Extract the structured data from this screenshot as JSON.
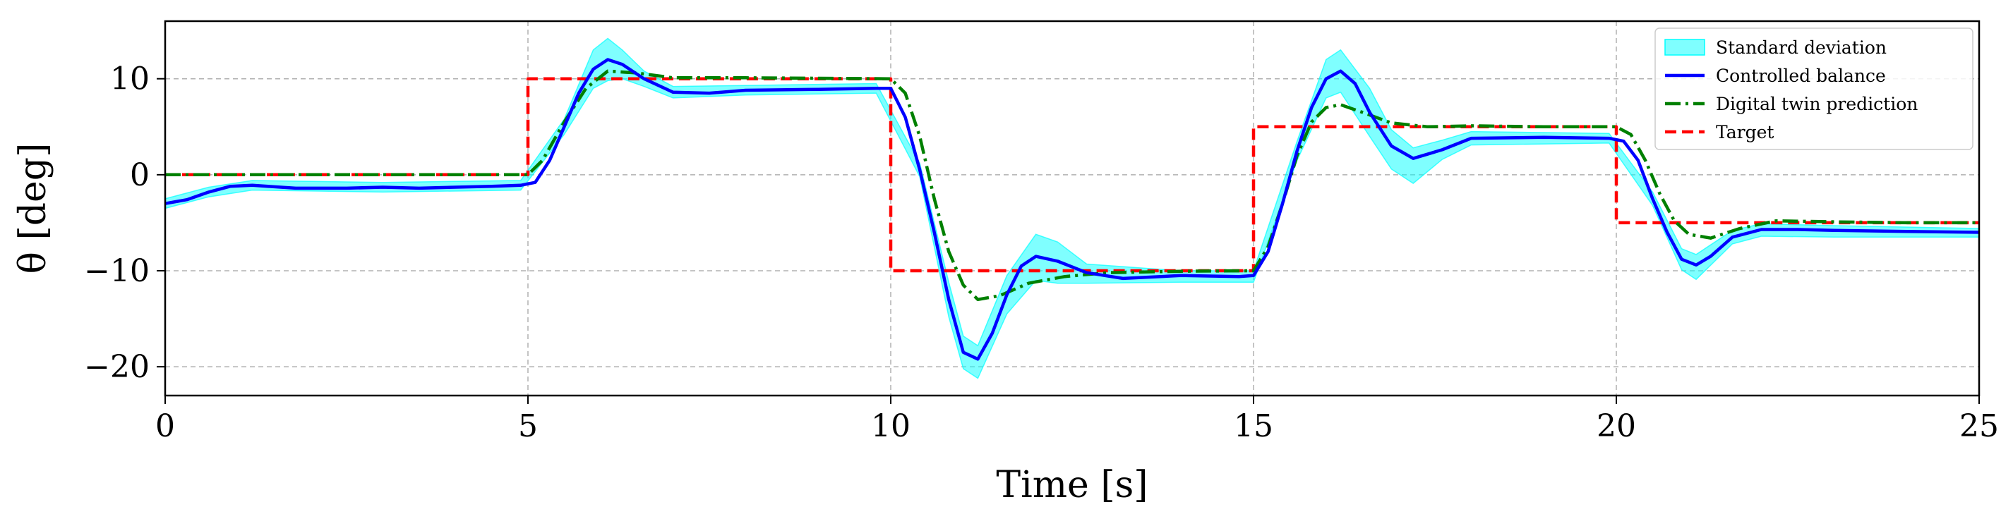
{
  "chart_data": {
    "type": "line",
    "title": "",
    "xlabel": "Time [s]",
    "ylabel": "θ [deg]",
    "xlim": [
      0,
      25
    ],
    "ylim": [
      -23,
      16
    ],
    "xticks": [
      0,
      5,
      10,
      15,
      20,
      25
    ],
    "yticks": [
      -20,
      -10,
      0,
      10
    ],
    "xtick_labels": [
      "0",
      "5",
      "10",
      "15",
      "20",
      "25"
    ],
    "ytick_labels": [
      "−20",
      "−10",
      "0",
      "10"
    ],
    "grid": true,
    "legend_position": "top-right",
    "colors": {
      "std": "#00ffff",
      "balance": "#0000ff",
      "twin": "#008000",
      "target": "#ff0000",
      "grid": "#b0b0b0"
    },
    "legend": [
      {
        "key": "std",
        "label": "Standard deviation"
      },
      {
        "key": "balance",
        "label": "Controlled balance"
      },
      {
        "key": "twin",
        "label": "Digital twin prediction"
      },
      {
        "key": "target",
        "label": "Target"
      }
    ],
    "series": [
      {
        "key": "target",
        "name": "Target",
        "x": [
          0,
          5,
          5,
          10,
          10,
          15,
          15,
          20,
          20,
          25
        ],
        "y": [
          0,
          0,
          10,
          10,
          -10,
          -10,
          5,
          5,
          -5,
          -5
        ]
      },
      {
        "key": "twin",
        "name": "Digital twin prediction",
        "x": [
          0,
          5,
          5.2,
          5.5,
          5.8,
          6.1,
          6.5,
          7,
          8,
          9,
          10,
          10.2,
          10.4,
          10.6,
          10.8,
          11,
          11.2,
          11.5,
          11.9,
          12.4,
          13,
          14,
          15,
          15.2,
          15.4,
          15.6,
          15.8,
          16,
          16.2,
          16.5,
          16.9,
          17.4,
          18,
          19,
          20,
          20.2,
          20.4,
          20.6,
          20.8,
          21,
          21.3,
          21.7,
          22.2,
          23,
          24,
          25
        ],
        "y": [
          0,
          0,
          1.5,
          5.5,
          9,
          10.8,
          10.6,
          10.1,
          10.1,
          10.05,
          10,
          8.5,
          4,
          -2.5,
          -8,
          -11.5,
          -13,
          -12.6,
          -11.3,
          -10.6,
          -10.2,
          -10.05,
          -10,
          -7.5,
          -3,
          2,
          5.5,
          7,
          7.3,
          6.5,
          5.4,
          5,
          5.1,
          5,
          5,
          4.2,
          1.5,
          -2,
          -4.8,
          -6.2,
          -6.6,
          -5.6,
          -4.8,
          -4.9,
          -5,
          -5
        ]
      },
      {
        "key": "balance",
        "name": "Controlled balance",
        "x": [
          0,
          0.3,
          0.6,
          0.9,
          1.2,
          1.8,
          2.5,
          3,
          3.5,
          4,
          4.5,
          4.9,
          5.1,
          5.3,
          5.5,
          5.7,
          5.9,
          6.1,
          6.3,
          6.6,
          7,
          7.5,
          8,
          9,
          9.8,
          10,
          10.2,
          10.4,
          10.6,
          10.8,
          11,
          11.2,
          11.4,
          11.6,
          11.8,
          12,
          12.3,
          12.7,
          13.2,
          14,
          14.8,
          15,
          15.2,
          15.4,
          15.6,
          15.8,
          16,
          16.2,
          16.4,
          16.6,
          16.9,
          17.2,
          17.6,
          18,
          19,
          19.9,
          20.1,
          20.3,
          20.5,
          20.7,
          20.9,
          21.1,
          21.3,
          21.6,
          22,
          22.5,
          23,
          24,
          25
        ],
        "y": [
          -3,
          -2.6,
          -1.8,
          -1.2,
          -1.1,
          -1.4,
          -1.4,
          -1.3,
          -1.4,
          -1.3,
          -1.2,
          -1.1,
          -0.8,
          1.5,
          5,
          8.5,
          11,
          12,
          11.5,
          10,
          8.6,
          8.5,
          8.8,
          8.9,
          9,
          9,
          6,
          0.5,
          -6,
          -13,
          -18.5,
          -19.2,
          -16.5,
          -12.5,
          -9.5,
          -8.5,
          -9,
          -10.2,
          -10.8,
          -10.5,
          -10.6,
          -10.5,
          -8,
          -3,
          2.5,
          7,
          10,
          10.8,
          9.5,
          6.5,
          3,
          1.7,
          2.6,
          3.8,
          3.9,
          3.8,
          3.5,
          1.5,
          -2.5,
          -6,
          -8.8,
          -9.4,
          -8.5,
          -6.5,
          -5.7,
          -5.7,
          -5.8,
          -5.9,
          -6
        ]
      }
    ],
    "std_band": {
      "key": "std",
      "name": "Standard deviation",
      "x": [
        0,
        0.6,
        1.2,
        3,
        4.9,
        5.5,
        5.9,
        6.1,
        6.3,
        6.6,
        7,
        8,
        9.8,
        10.4,
        10.8,
        11,
        11.2,
        11.6,
        12,
        12.3,
        12.7,
        14,
        15,
        15.6,
        16,
        16.2,
        16.6,
        16.9,
        17.2,
        17.6,
        18,
        19.9,
        20.5,
        20.9,
        21.1,
        21.6,
        22,
        23,
        25
      ],
      "upper": [
        -2.5,
        -1.3,
        -0.6,
        -0.8,
        -0.6,
        5.8,
        13,
        14.2,
        13,
        10.8,
        9.2,
        9.3,
        9.5,
        1.2,
        -11.2,
        -16.8,
        -17.8,
        -10.5,
        -6.2,
        -7,
        -9.3,
        -10,
        -10,
        3.5,
        12,
        13,
        9,
        4.7,
        2.8,
        3.6,
        4.5,
        4.3,
        -1.8,
        -7.7,
        -8.3,
        -5.8,
        -5.1,
        -5.3,
        -5.6
      ],
      "lower": [
        -3.5,
        -2.3,
        -1.6,
        -1.8,
        -1.6,
        4.2,
        9,
        9.8,
        10,
        9.2,
        8,
        8.3,
        8.5,
        -0.2,
        -14.8,
        -20.2,
        -21.2,
        -14.5,
        -11,
        -11.3,
        -11.3,
        -11.2,
        -11.2,
        1.5,
        8,
        8.6,
        4,
        0.6,
        -0.9,
        1.6,
        3.1,
        3.3,
        -3.2,
        -9.9,
        -10.9,
        -7.2,
        -6.4,
        -6.5,
        -6.5
      ]
    }
  }
}
